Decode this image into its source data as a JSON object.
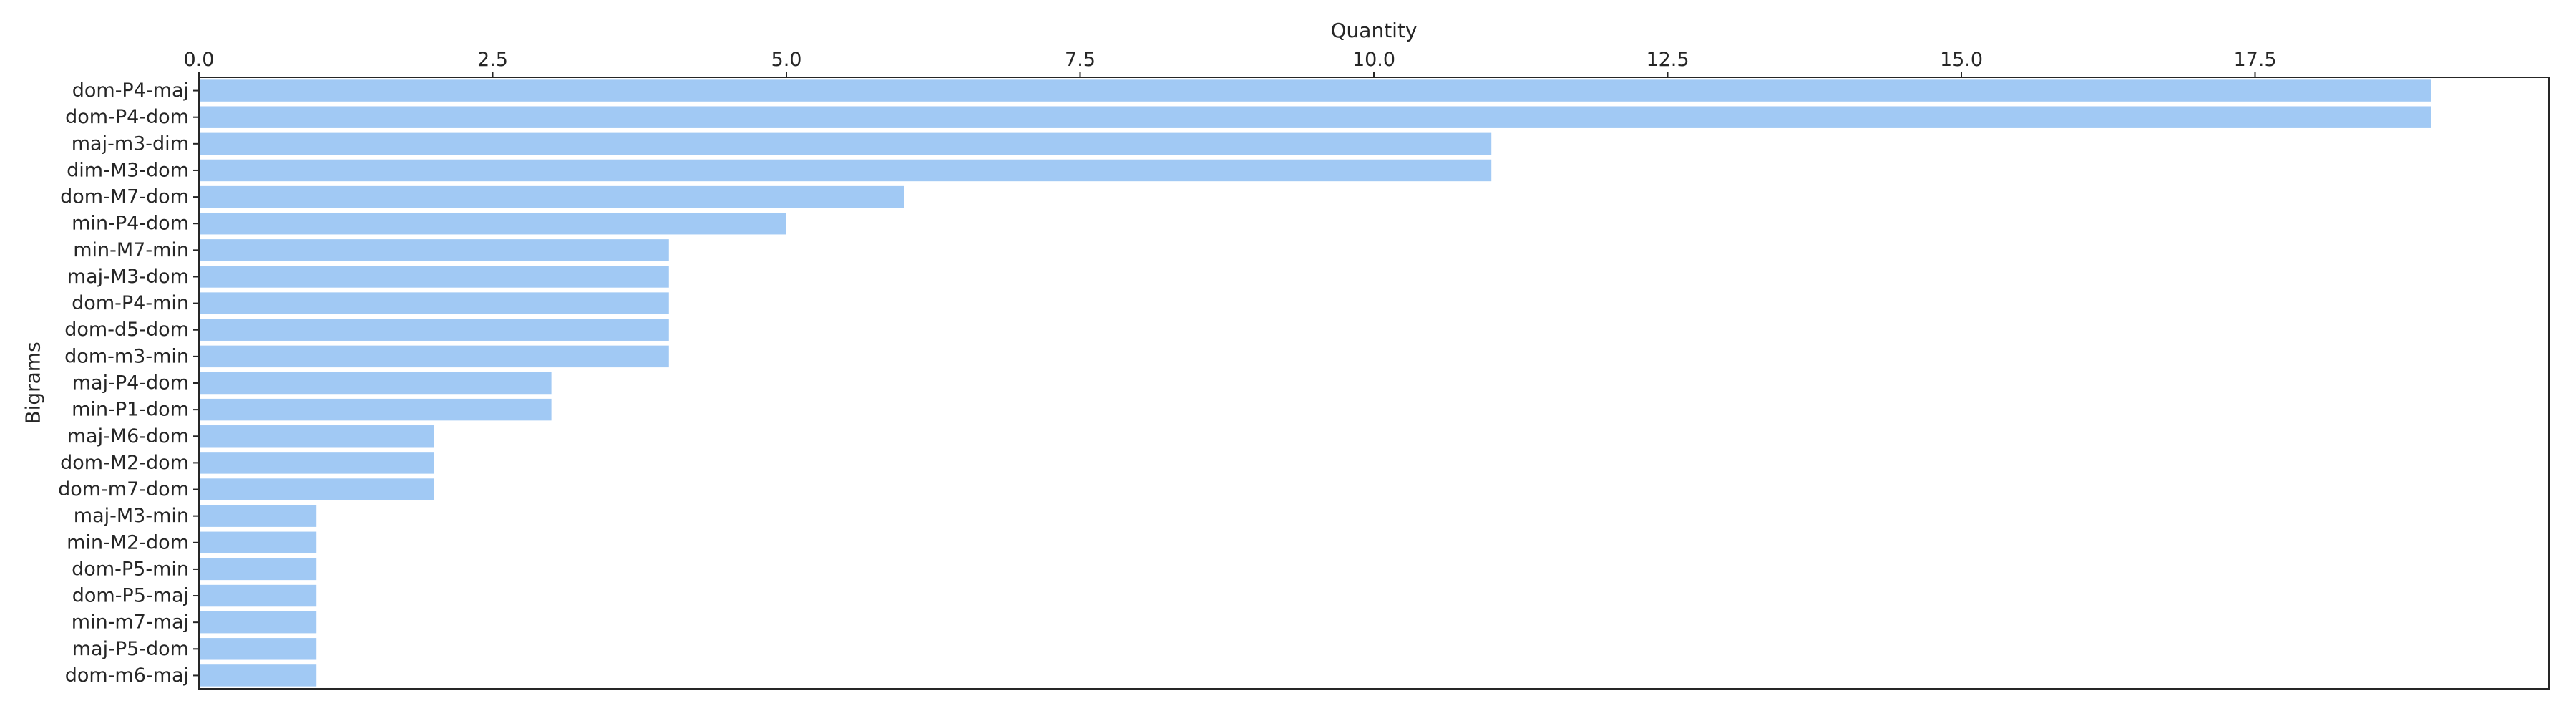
{
  "chart_data": {
    "type": "bar",
    "orientation": "horizontal",
    "title": "",
    "xlabel": "Quantity",
    "ylabel": "Bigrams",
    "x_axis_position": "top",
    "xlim": [
      0,
      20
    ],
    "xticks": [
      0.0,
      2.5,
      5.0,
      7.5,
      10.0,
      12.5,
      15.0,
      17.5
    ],
    "xtick_labels": [
      "0.0",
      "2.5",
      "5.0",
      "7.5",
      "10.0",
      "12.5",
      "15.0",
      "17.5"
    ],
    "grid": false,
    "legend": "none",
    "bar_color": "#a1c9f4",
    "categories": [
      "dom-P4-maj",
      "dom-P4-dom",
      "maj-m3-dim",
      "dim-M3-dom",
      "dom-M7-dom",
      "min-P4-dom",
      "min-M7-min",
      "maj-M3-dom",
      "dom-P4-min",
      "dom-d5-dom",
      "dom-m3-min",
      "maj-P4-dom",
      "min-P1-dom",
      "maj-M6-dom",
      "dom-M2-dom",
      "dom-m7-dom",
      "maj-M3-min",
      "min-M2-dom",
      "dom-P5-min",
      "dom-P5-maj",
      "min-m7-maj",
      "maj-P5-dom",
      "dom-m6-maj"
    ],
    "values": [
      19,
      19,
      11,
      11,
      6,
      5,
      4,
      4,
      4,
      4,
      4,
      3,
      3,
      2,
      2,
      2,
      1,
      1,
      1,
      1,
      1,
      1,
      1
    ]
  }
}
